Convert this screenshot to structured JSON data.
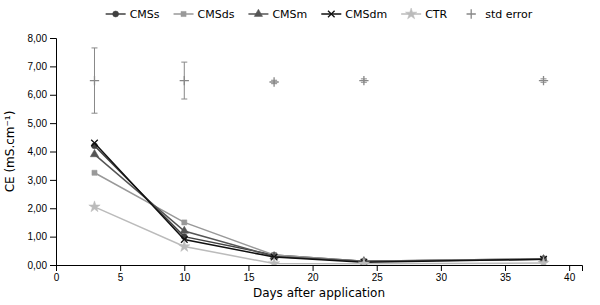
{
  "chart_data": {
    "type": "line",
    "xlabel": "Days after application",
    "ylabel": "CE (mS.cm⁻¹)",
    "x": [
      3,
      10,
      17,
      24,
      38
    ],
    "series": [
      {
        "name": "CMSs",
        "color": "#404040",
        "marker": "circle",
        "line_style": "solid",
        "values": [
          4.2,
          1.0,
          0.35,
          0.13,
          0.22
        ]
      },
      {
        "name": "CMSds",
        "color": "#999999",
        "marker": "square",
        "line_style": "solid",
        "values": [
          3.25,
          1.5,
          0.35,
          0.13,
          0.22
        ]
      },
      {
        "name": "CMSm",
        "color": "#555555",
        "marker": "triangle",
        "line_style": "solid",
        "values": [
          3.9,
          1.2,
          0.3,
          0.13,
          0.2
        ]
      },
      {
        "name": "CMSdm",
        "color": "#111111",
        "marker": "cross",
        "line_style": "solid",
        "values": [
          4.3,
          0.9,
          0.28,
          0.1,
          0.2
        ]
      },
      {
        "name": "CTR",
        "color": "#bbbbbb",
        "marker": "star",
        "line_style": "solid",
        "values": [
          2.05,
          0.65,
          0.05,
          0.04,
          0.07
        ]
      },
      {
        "name": "std error",
        "type": "errorbar",
        "color": "#888888",
        "marker": "plus",
        "line_style": "none",
        "values": [
          6.5,
          6.5,
          6.45,
          6.5,
          6.5
        ],
        "errors": [
          1.15,
          0.65,
          0.06,
          0.06,
          0.06
        ]
      }
    ],
    "xlim": [
      0,
      41
    ],
    "ylim": [
      0,
      8.0
    ],
    "xticks": [
      0,
      5,
      10,
      15,
      20,
      25,
      30,
      35,
      40
    ],
    "yticks": [
      {
        "value": 0.0,
        "label": "0,00"
      },
      {
        "value": 1.0,
        "label": "1,00"
      },
      {
        "value": 2.0,
        "label": "2,00"
      },
      {
        "value": 3.0,
        "label": "3,00"
      },
      {
        "value": 4.0,
        "label": "4,00"
      },
      {
        "value": 5.0,
        "label": "5,00"
      },
      {
        "value": 6.0,
        "label": "6,00"
      },
      {
        "value": 7.0,
        "label": "7,00"
      },
      {
        "value": 8.0,
        "label": "8,00"
      }
    ],
    "grid": false,
    "legend": "top"
  }
}
